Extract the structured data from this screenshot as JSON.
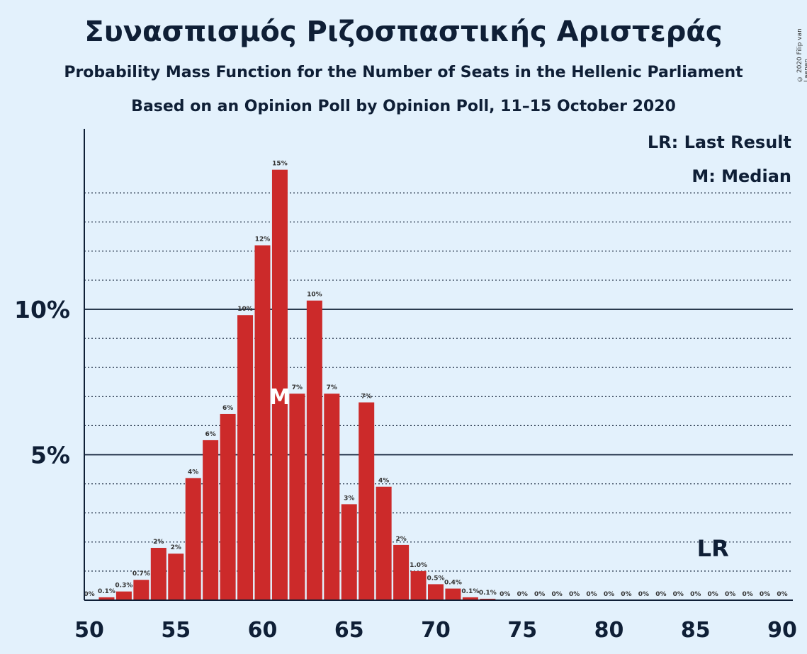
{
  "title": "Συνασπισμός Ριζοσπαστικής Αριστεράς",
  "subtitle": "Probability Mass Function for the Number of Seats in the Hellenic Parliament",
  "subtitle2": "Based on an Opinion Poll by Opinion Poll, 11–15 October 2020",
  "copyright": "© 2020 Filip van Laenen",
  "legend": {
    "last_result": "LR: Last Result",
    "median": "M: Median"
  },
  "colors": {
    "bar": "#cc2a2a",
    "background": "#e3f1fc",
    "text": "#0f1f36"
  },
  "chart_data": {
    "type": "bar",
    "x": [
      50,
      51,
      52,
      53,
      54,
      55,
      56,
      57,
      58,
      59,
      60,
      61,
      62,
      63,
      64,
      65,
      66,
      67,
      68,
      69,
      70,
      71,
      72,
      73,
      74,
      75,
      76,
      77,
      78,
      79,
      80,
      81,
      82,
      83,
      84,
      85,
      86,
      87,
      88,
      89,
      90
    ],
    "values": [
      0,
      0.1,
      0.3,
      0.7,
      1.8,
      1.6,
      4.2,
      5.5,
      6.4,
      9.8,
      12.2,
      14.8,
      7.1,
      10.3,
      7.1,
      3.3,
      6.8,
      3.9,
      1.9,
      1.0,
      0.55,
      0.4,
      0.1,
      0.05,
      0,
      0,
      0,
      0,
      0,
      0,
      0,
      0,
      0,
      0,
      0,
      0,
      0,
      0,
      0,
      0,
      0
    ],
    "labels": [
      "0%",
      "0.1%",
      "0.3%",
      "0.7%",
      "2%",
      "2%",
      "4%",
      "6%",
      "6%",
      "10%",
      "12%",
      "15%",
      "7%",
      "10%",
      "7%",
      "3%",
      "7%",
      "4%",
      "2%",
      "1.0%",
      "0.5%",
      "0.4%",
      "0.1%",
      "0.1%",
      "0%",
      "0%",
      "0%",
      "0%",
      "0%",
      "0%",
      "0%",
      "0%",
      "0%",
      "0%",
      "0%",
      "0%",
      "0%",
      "0%",
      "0%",
      "0%",
      "0%"
    ],
    "x_ticks": [
      "50",
      "55",
      "60",
      "65",
      "70",
      "75",
      "80",
      "85",
      "90"
    ],
    "y_ticks": [
      "5%",
      "10%"
    ],
    "xlim": [
      50,
      90
    ],
    "ylim": [
      0,
      16
    ],
    "median": 61,
    "median_label": "M",
    "last_result": 86,
    "last_result_label": "LR",
    "grid": "dotted every 1%, solid at 5% and 10%",
    "legend_position": "top-right"
  }
}
